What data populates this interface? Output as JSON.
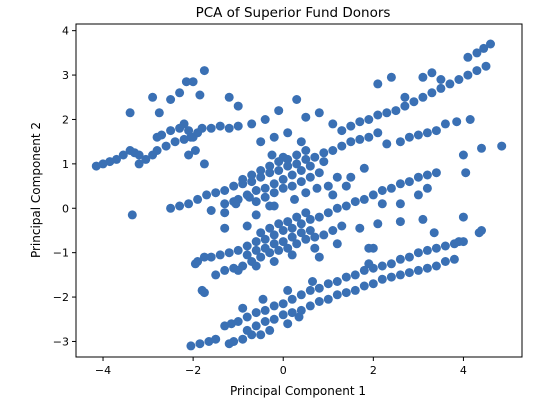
{
  "chart_data": {
    "type": "scatter",
    "title": "PCA of Superior Fund Donors",
    "xlabel": "Principal Component 1",
    "ylabel": "Principal Component 2",
    "xlim": [
      -4.6,
      5.3
    ],
    "ylim": [
      -3.35,
      4.15
    ],
    "xticks": [
      -4,
      -2,
      0,
      2,
      4
    ],
    "yticks": [
      -3,
      -2,
      -1,
      0,
      1,
      2,
      3,
      4
    ],
    "grid": false,
    "legend": "none",
    "marker_color": "#3a70b4",
    "series": [
      {
        "points": [
          [
            -4.15,
            0.95
          ],
          [
            -4.0,
            1.0
          ],
          [
            -3.85,
            1.05
          ],
          [
            -3.7,
            1.1
          ],
          [
            -3.55,
            1.2
          ],
          [
            -3.4,
            1.3
          ],
          [
            -3.3,
            1.25
          ],
          [
            -3.2,
            1.2
          ],
          [
            -3.4,
            2.15
          ],
          [
            -3.35,
            -0.15
          ],
          [
            -3.2,
            1.0
          ],
          [
            -3.05,
            1.1
          ],
          [
            -2.9,
            1.2
          ],
          [
            -2.8,
            1.3
          ],
          [
            -2.6,
            1.4
          ],
          [
            -2.4,
            1.5
          ],
          [
            -2.2,
            1.55
          ],
          [
            -2.05,
            1.6
          ],
          [
            -1.9,
            1.7
          ],
          [
            -1.8,
            1.8
          ],
          [
            -2.8,
            1.6
          ],
          [
            -2.7,
            1.65
          ],
          [
            -2.5,
            1.75
          ],
          [
            -2.3,
            1.8
          ],
          [
            -2.2,
            1.9
          ],
          [
            -2.1,
            1.75
          ],
          [
            -2.0,
            1.6
          ],
          [
            -1.95,
            1.3
          ],
          [
            -2.1,
            1.2
          ],
          [
            -1.75,
            1.0
          ],
          [
            -2.9,
            2.5
          ],
          [
            -2.75,
            2.15
          ],
          [
            -2.5,
            2.45
          ],
          [
            -2.3,
            2.6
          ],
          [
            -2.15,
            2.85
          ],
          [
            -2.0,
            2.85
          ],
          [
            -1.75,
            3.1
          ],
          [
            -1.85,
            2.55
          ],
          [
            -1.2,
            2.5
          ],
          [
            -1.0,
            2.3
          ],
          [
            -1.6,
            1.8
          ],
          [
            -1.4,
            1.85
          ],
          [
            -1.2,
            1.8
          ],
          [
            -1.0,
            1.85
          ],
          [
            -0.7,
            1.9
          ],
          [
            -0.4,
            2.0
          ],
          [
            -0.1,
            2.2
          ],
          [
            0.3,
            2.45
          ],
          [
            0.5,
            2.05
          ],
          [
            0.8,
            2.15
          ],
          [
            1.1,
            1.9
          ],
          [
            1.3,
            1.75
          ],
          [
            1.5,
            1.85
          ],
          [
            1.7,
            1.95
          ],
          [
            1.9,
            2.0
          ],
          [
            2.1,
            2.1
          ],
          [
            2.3,
            2.15
          ],
          [
            2.5,
            2.2
          ],
          [
            2.7,
            2.3
          ],
          [
            2.9,
            2.4
          ],
          [
            3.1,
            2.5
          ],
          [
            3.3,
            2.6
          ],
          [
            3.5,
            2.7
          ],
          [
            3.7,
            2.8
          ],
          [
            3.9,
            2.9
          ],
          [
            4.1,
            3.0
          ],
          [
            4.3,
            3.1
          ],
          [
            4.5,
            3.2
          ],
          [
            2.1,
            2.8
          ],
          [
            2.4,
            2.95
          ],
          [
            2.7,
            2.5
          ],
          [
            3.1,
            2.95
          ],
          [
            3.3,
            3.05
          ],
          [
            3.5,
            2.9
          ],
          [
            4.1,
            3.4
          ],
          [
            4.3,
            3.5
          ],
          [
            4.45,
            3.6
          ],
          [
            4.6,
            3.7
          ],
          [
            2.3,
            1.45
          ],
          [
            2.6,
            1.5
          ],
          [
            2.8,
            1.6
          ],
          [
            3.0,
            1.65
          ],
          [
            3.2,
            1.7
          ],
          [
            3.4,
            1.75
          ],
          [
            3.6,
            1.9
          ],
          [
            3.85,
            1.95
          ],
          [
            4.15,
            2.0
          ],
          [
            4.0,
            1.2
          ],
          [
            4.4,
            1.35
          ],
          [
            4.85,
            1.4
          ],
          [
            4.05,
            0.8
          ],
          [
            -2.5,
            0.0
          ],
          [
            -2.3,
            0.05
          ],
          [
            -2.1,
            0.1
          ],
          [
            -1.9,
            0.2
          ],
          [
            -1.7,
            0.3
          ],
          [
            -1.5,
            0.35
          ],
          [
            -1.3,
            0.4
          ],
          [
            -1.1,
            0.5
          ],
          [
            -0.9,
            0.55
          ],
          [
            -0.7,
            0.6
          ],
          [
            -0.5,
            0.7
          ],
          [
            -0.3,
            0.8
          ],
          [
            -0.1,
            0.85
          ],
          [
            0.1,
            0.95
          ],
          [
            0.3,
            1.0
          ],
          [
            0.5,
            1.1
          ],
          [
            0.7,
            1.15
          ],
          [
            0.9,
            1.25
          ],
          [
            1.1,
            1.3
          ],
          [
            1.3,
            1.4
          ],
          [
            1.5,
            1.5
          ],
          [
            1.7,
            1.55
          ],
          [
            1.9,
            1.6
          ],
          [
            2.1,
            1.7
          ],
          [
            -1.0,
            0.2
          ],
          [
            -0.8,
            0.3
          ],
          [
            -0.6,
            0.4
          ],
          [
            -0.4,
            0.45
          ],
          [
            -0.2,
            0.55
          ],
          [
            0.0,
            0.65
          ],
          [
            0.2,
            0.75
          ],
          [
            0.4,
            0.85
          ],
          [
            -0.9,
            0.65
          ],
          [
            -0.7,
            0.75
          ],
          [
            -0.5,
            0.85
          ],
          [
            -0.3,
            0.95
          ],
          [
            -0.1,
            1.05
          ],
          [
            0.1,
            1.1
          ],
          [
            0.3,
            1.2
          ],
          [
            0.5,
            1.3
          ],
          [
            -0.6,
            0.15
          ],
          [
            -0.4,
            0.25
          ],
          [
            -0.2,
            0.35
          ],
          [
            0.0,
            0.45
          ],
          [
            0.2,
            0.5
          ],
          [
            0.4,
            0.6
          ],
          [
            0.6,
            0.7
          ],
          [
            0.8,
            0.8
          ],
          [
            -1.6,
            -0.05
          ],
          [
            -1.3,
            -0.1
          ],
          [
            -1.05,
            0.1
          ],
          [
            -0.75,
            0.25
          ],
          [
            -0.2,
            0.05
          ],
          [
            0.25,
            0.2
          ],
          [
            0.75,
            0.45
          ],
          [
            1.0,
            0.5
          ],
          [
            0.6,
            0.95
          ],
          [
            0.9,
            1.05
          ],
          [
            -1.3,
            0.1
          ],
          [
            -1.1,
            0.15
          ],
          [
            -0.25,
            1.2
          ],
          [
            0.0,
            1.15
          ],
          [
            1.2,
            0.7
          ],
          [
            1.5,
            0.7
          ],
          [
            1.8,
            0.9
          ],
          [
            -0.5,
            1.5
          ],
          [
            -0.2,
            1.6
          ],
          [
            0.1,
            1.7
          ],
          [
            0.4,
            1.5
          ],
          [
            -1.9,
            -1.2
          ],
          [
            -1.6,
            -1.1
          ],
          [
            -1.4,
            -1.05
          ],
          [
            -1.2,
            -1.0
          ],
          [
            -1.0,
            -0.95
          ],
          [
            -0.8,
            -0.85
          ],
          [
            -0.6,
            -0.75
          ],
          [
            -0.4,
            -0.7
          ],
          [
            -0.2,
            -0.6
          ],
          [
            0.0,
            -0.5
          ],
          [
            0.2,
            -0.45
          ],
          [
            0.4,
            -0.35
          ],
          [
            0.6,
            -0.25
          ],
          [
            0.8,
            -0.2
          ],
          [
            1.0,
            -0.1
          ],
          [
            1.2,
            0.0
          ],
          [
            1.4,
            0.05
          ],
          [
            1.6,
            0.15
          ],
          [
            1.8,
            0.2
          ],
          [
            2.0,
            0.3
          ],
          [
            2.2,
            0.4
          ],
          [
            2.4,
            0.45
          ],
          [
            2.6,
            0.55
          ],
          [
            2.8,
            0.6
          ],
          [
            3.0,
            0.7
          ],
          [
            3.2,
            0.75
          ],
          [
            3.4,
            0.8
          ],
          [
            -1.5,
            -1.5
          ],
          [
            -1.3,
            -1.4
          ],
          [
            -1.1,
            -1.35
          ],
          [
            -0.9,
            -1.3
          ],
          [
            -0.7,
            -1.2
          ],
          [
            -0.5,
            -1.1
          ],
          [
            -0.3,
            -1.0
          ],
          [
            -0.1,
            -0.95
          ],
          [
            0.1,
            -0.9
          ],
          [
            0.3,
            -0.8
          ],
          [
            0.5,
            -0.7
          ],
          [
            0.7,
            -0.65
          ],
          [
            0.9,
            -0.6
          ],
          [
            1.1,
            -0.5
          ],
          [
            1.3,
            -0.4
          ],
          [
            -0.8,
            -1.05
          ],
          [
            -0.6,
            -0.95
          ],
          [
            -0.4,
            -0.9
          ],
          [
            -0.2,
            -0.8
          ],
          [
            0.0,
            -0.75
          ],
          [
            0.2,
            -0.65
          ],
          [
            0.4,
            -0.55
          ],
          [
            0.6,
            -0.5
          ],
          [
            -0.5,
            -0.55
          ],
          [
            -0.3,
            -0.45
          ],
          [
            -0.1,
            -0.35
          ],
          [
            0.1,
            -0.3
          ],
          [
            0.3,
            -0.2
          ],
          [
            0.5,
            -0.1
          ],
          [
            -1.0,
            -1.4
          ],
          [
            -0.6,
            -1.3
          ],
          [
            -0.2,
            -1.2
          ],
          [
            0.2,
            -1.05
          ],
          [
            0.7,
            -0.9
          ],
          [
            1.2,
            -0.8
          ],
          [
            1.7,
            -0.45
          ],
          [
            2.1,
            -0.35
          ],
          [
            2.6,
            -0.3
          ],
          [
            3.1,
            -0.25
          ],
          [
            3.35,
            -0.55
          ],
          [
            3.9,
            -0.75
          ],
          [
            4.0,
            -0.2
          ],
          [
            4.35,
            -0.55
          ],
          [
            4.4,
            -0.5
          ],
          [
            1.9,
            -0.9
          ],
          [
            0.8,
            -1.1
          ],
          [
            0.5,
            0.35
          ],
          [
            1.1,
            0.3
          ],
          [
            1.4,
            0.5
          ],
          [
            -0.6,
            -0.15
          ],
          [
            -0.3,
            0.05
          ],
          [
            2.2,
            0.1
          ],
          [
            2.6,
            0.1
          ],
          [
            3.0,
            0.3
          ],
          [
            3.2,
            0.45
          ],
          [
            -1.3,
            -0.45
          ],
          [
            -0.8,
            -0.4
          ],
          [
            -1.95,
            -1.25
          ],
          [
            -1.75,
            -1.1
          ],
          [
            -2.05,
            -3.1
          ],
          [
            -1.85,
            -3.05
          ],
          [
            -1.65,
            -3.0
          ],
          [
            -1.5,
            -2.95
          ],
          [
            -1.2,
            -3.05
          ],
          [
            -1.1,
            -3.0
          ],
          [
            -0.9,
            -2.95
          ],
          [
            -0.7,
            -2.85
          ],
          [
            -1.3,
            -2.65
          ],
          [
            -1.15,
            -2.6
          ],
          [
            -1.0,
            -2.55
          ],
          [
            -0.8,
            -2.45
          ],
          [
            -0.6,
            -2.35
          ],
          [
            -0.4,
            -2.3
          ],
          [
            -0.2,
            -2.2
          ],
          [
            0.0,
            -2.15
          ],
          [
            0.2,
            -2.05
          ],
          [
            0.4,
            -1.95
          ],
          [
            0.6,
            -1.85
          ],
          [
            0.8,
            -1.8
          ],
          [
            1.0,
            -1.7
          ],
          [
            1.2,
            -1.65
          ],
          [
            1.4,
            -1.55
          ],
          [
            1.6,
            -1.5
          ],
          [
            1.8,
            -1.4
          ],
          [
            2.0,
            -1.35
          ],
          [
            2.2,
            -1.3
          ],
          [
            2.4,
            -1.25
          ],
          [
            2.6,
            -1.15
          ],
          [
            2.8,
            -1.1
          ],
          [
            3.0,
            -1.0
          ],
          [
            3.2,
            -0.95
          ],
          [
            3.4,
            -0.9
          ],
          [
            3.6,
            -0.85
          ],
          [
            3.8,
            -0.8
          ],
          [
            4.0,
            -0.75
          ],
          [
            -0.8,
            -2.75
          ],
          [
            -0.6,
            -2.65
          ],
          [
            -0.4,
            -2.55
          ],
          [
            -0.2,
            -2.5
          ],
          [
            0.0,
            -2.4
          ],
          [
            0.2,
            -2.35
          ],
          [
            0.4,
            -2.3
          ],
          [
            0.6,
            -2.2
          ],
          [
            0.8,
            -2.1
          ],
          [
            1.0,
            -2.05
          ],
          [
            1.2,
            -1.95
          ],
          [
            1.4,
            -1.9
          ],
          [
            1.6,
            -1.85
          ],
          [
            1.8,
            -1.75
          ],
          [
            2.0,
            -1.7
          ],
          [
            2.2,
            -1.6
          ],
          [
            2.4,
            -1.55
          ],
          [
            2.6,
            -1.5
          ],
          [
            2.8,
            -1.45
          ],
          [
            3.0,
            -1.4
          ],
          [
            3.2,
            -1.35
          ],
          [
            3.4,
            -1.3
          ],
          [
            3.6,
            -1.2
          ],
          [
            3.8,
            -1.15
          ],
          [
            -1.8,
            -1.85
          ],
          [
            -1.75,
            -1.9
          ],
          [
            -0.5,
            -2.85
          ],
          [
            -0.3,
            -2.75
          ],
          [
            0.1,
            -2.6
          ],
          [
            0.35,
            -2.45
          ],
          [
            -0.9,
            -2.25
          ],
          [
            -0.45,
            -2.05
          ],
          [
            0.1,
            -1.85
          ],
          [
            0.65,
            -1.65
          ],
          [
            1.9,
            -1.25
          ],
          [
            2.0,
            -0.9
          ]
        ]
      }
    ]
  }
}
